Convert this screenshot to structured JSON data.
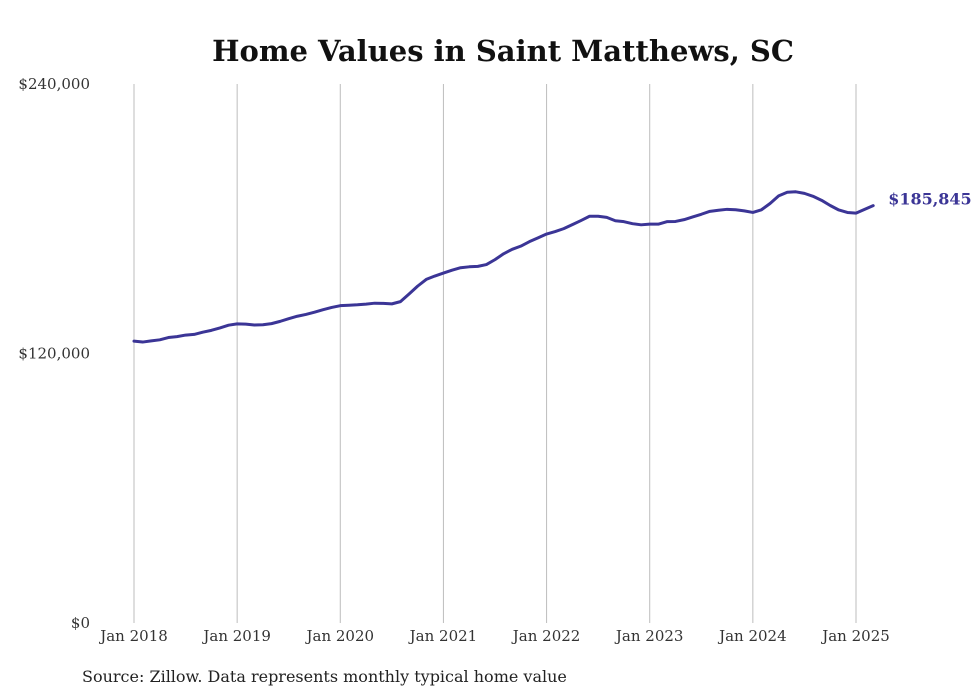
{
  "chart_data": {
    "type": "line",
    "title": "Home Values in Saint Matthews, SC",
    "xlabel": "",
    "ylabel": "",
    "ylim": [
      0,
      240000
    ],
    "y_ticks": [
      {
        "value": 0,
        "label": "$0"
      },
      {
        "value": 120000,
        "label": "$120,000"
      },
      {
        "value": 240000,
        "label": "$240,000"
      }
    ],
    "x_ticks": [
      {
        "value": "2018-01",
        "label": "Jan 2018"
      },
      {
        "value": "2019-01",
        "label": "Jan 2019"
      },
      {
        "value": "2020-01",
        "label": "Jan 2020"
      },
      {
        "value": "2021-01",
        "label": "Jan 2021"
      },
      {
        "value": "2022-01",
        "label": "Jan 2022"
      },
      {
        "value": "2023-01",
        "label": "Jan 2023"
      },
      {
        "value": "2024-01",
        "label": "Jan 2024"
      },
      {
        "value": "2025-01",
        "label": "Jan 2025"
      }
    ],
    "grid": {
      "vertical": true,
      "horizontal": false
    },
    "series": [
      {
        "color": "#3b3596",
        "end_label": "$185,845",
        "points": [
          [
            "2018-01",
            125500
          ],
          [
            "2018-02",
            125100
          ],
          [
            "2018-03",
            125600
          ],
          [
            "2018-04",
            126100
          ],
          [
            "2018-05",
            127100
          ],
          [
            "2018-06",
            127500
          ],
          [
            "2018-07",
            128200
          ],
          [
            "2018-08",
            128500
          ],
          [
            "2018-09",
            129500
          ],
          [
            "2018-10",
            130300
          ],
          [
            "2018-11",
            131400
          ],
          [
            "2018-12",
            132600
          ],
          [
            "2019-01",
            133200
          ],
          [
            "2019-02",
            133100
          ],
          [
            "2019-03",
            132700
          ],
          [
            "2019-04",
            132800
          ],
          [
            "2019-05",
            133300
          ],
          [
            "2019-06",
            134300
          ],
          [
            "2019-07",
            135500
          ],
          [
            "2019-08",
            136600
          ],
          [
            "2019-09",
            137400
          ],
          [
            "2019-10",
            138400
          ],
          [
            "2019-11",
            139500
          ],
          [
            "2019-12",
            140500
          ],
          [
            "2020-01",
            141300
          ],
          [
            "2020-02",
            141500
          ],
          [
            "2020-03",
            141700
          ],
          [
            "2020-04",
            142000
          ],
          [
            "2020-05",
            142400
          ],
          [
            "2020-06",
            142300
          ],
          [
            "2020-07",
            142100
          ],
          [
            "2020-08",
            143100
          ],
          [
            "2020-09",
            146500
          ],
          [
            "2020-10",
            150000
          ],
          [
            "2020-11",
            153000
          ],
          [
            "2020-12",
            154500
          ],
          [
            "2021-01",
            155800
          ],
          [
            "2021-02",
            157100
          ],
          [
            "2021-03",
            158200
          ],
          [
            "2021-04",
            158600
          ],
          [
            "2021-05",
            158800
          ],
          [
            "2021-06",
            159600
          ],
          [
            "2021-07",
            161800
          ],
          [
            "2021-08",
            164400
          ],
          [
            "2021-09",
            166400
          ],
          [
            "2021-10",
            167800
          ],
          [
            "2021-11",
            169800
          ],
          [
            "2021-12",
            171500
          ],
          [
            "2022-01",
            173200
          ],
          [
            "2022-02",
            174300
          ],
          [
            "2022-03",
            175600
          ],
          [
            "2022-04",
            177400
          ],
          [
            "2022-05",
            179200
          ],
          [
            "2022-06",
            181100
          ],
          [
            "2022-07",
            181100
          ],
          [
            "2022-08",
            180600
          ],
          [
            "2022-09",
            179100
          ],
          [
            "2022-10",
            178700
          ],
          [
            "2022-11",
            177800
          ],
          [
            "2022-12",
            177300
          ],
          [
            "2023-01",
            177600
          ],
          [
            "2023-02",
            177600
          ],
          [
            "2023-03",
            178700
          ],
          [
            "2023-04",
            178800
          ],
          [
            "2023-05",
            179600
          ],
          [
            "2023-06",
            180800
          ],
          [
            "2023-07",
            182000
          ],
          [
            "2023-08",
            183300
          ],
          [
            "2023-09",
            183800
          ],
          [
            "2023-10",
            184200
          ],
          [
            "2023-11",
            184000
          ],
          [
            "2023-12",
            183500
          ],
          [
            "2024-01",
            182800
          ],
          [
            "2024-02",
            184000
          ],
          [
            "2024-03",
            186800
          ],
          [
            "2024-04",
            190200
          ],
          [
            "2024-05",
            191800
          ],
          [
            "2024-06",
            192000
          ],
          [
            "2024-07",
            191300
          ],
          [
            "2024-08",
            190000
          ],
          [
            "2024-09",
            188200
          ],
          [
            "2024-10",
            185900
          ],
          [
            "2024-11",
            183900
          ],
          [
            "2024-12",
            182800
          ],
          [
            "2025-01",
            182500
          ],
          [
            "2025-02",
            184200
          ],
          [
            "2025-03",
            185845
          ]
        ]
      }
    ]
  },
  "footer": {
    "source": "Source: Zillow. Data represents monthly typical home value"
  }
}
